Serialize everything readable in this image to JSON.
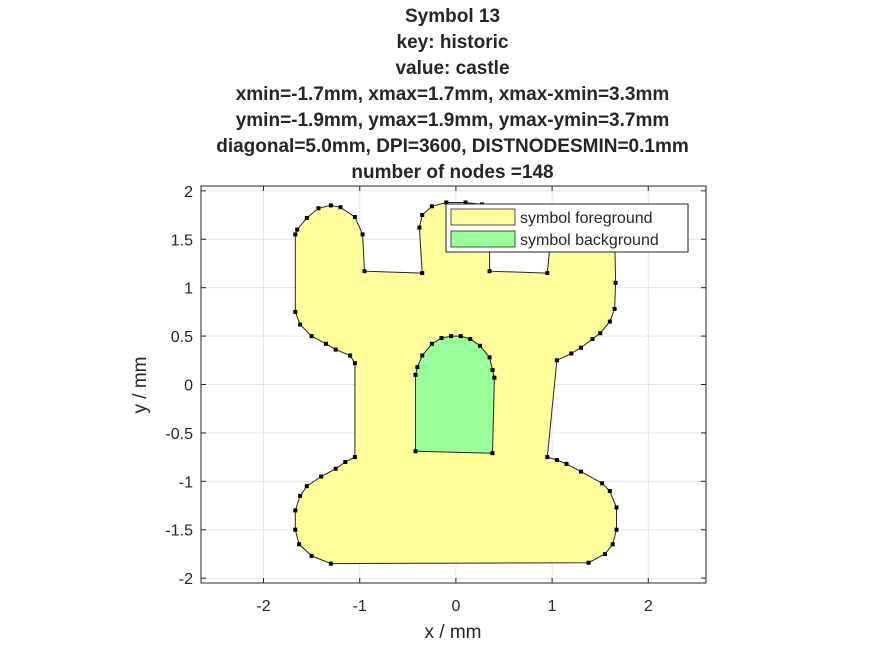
{
  "chart_data": {
    "type": "area",
    "title_lines": [
      "Symbol 13",
      "key: historic",
      "value: castle",
      "xmin=-1.7mm, xmax=1.7mm, xmax-xmin=3.3mm",
      "ymin=-1.9mm, ymax=1.9mm, ymax-ymin=3.7mm",
      "diagonal=5.0mm, DPI=3600, DISTNODESMIN=0.1mm",
      "number of nodes =148"
    ],
    "xlabel": "x / mm",
    "ylabel": "y / mm",
    "xlim": [
      -2.65,
      2.6
    ],
    "ylim": [
      -2.05,
      2.05
    ],
    "xticks": [
      -2,
      -1,
      0,
      1,
      2
    ],
    "xtick_labels": [
      "-2",
      "-1",
      "0",
      "1",
      "2"
    ],
    "yticks": [
      -2,
      -1.5,
      -1,
      -0.5,
      0,
      0.5,
      1,
      1.5,
      2
    ],
    "ytick_labels": [
      "-2",
      "-1.5",
      "-1",
      "-0.5",
      "0",
      "0.5",
      "1",
      "1.5",
      "2"
    ],
    "grid": true,
    "legend_position": "top-right",
    "series": [
      {
        "name": "symbol foreground",
        "color": "#ffff99",
        "points": [
          [
            -1.3,
            -1.85
          ],
          [
            1.38,
            -1.84
          ],
          [
            1.55,
            -1.75
          ],
          [
            1.63,
            -1.65
          ],
          [
            1.67,
            -1.5
          ],
          [
            1.67,
            -1.27
          ],
          [
            1.6,
            -1.1
          ],
          [
            1.52,
            -1.02
          ],
          [
            1.3,
            -0.9
          ],
          [
            1.15,
            -0.82
          ],
          [
            1.05,
            -0.78
          ],
          [
            0.95,
            -0.75
          ],
          [
            1.05,
            0.25
          ],
          [
            1.2,
            0.32
          ],
          [
            1.3,
            0.38
          ],
          [
            1.42,
            0.47
          ],
          [
            1.5,
            0.53
          ],
          [
            1.6,
            0.65
          ],
          [
            1.65,
            0.78
          ],
          [
            1.66,
            1.05
          ],
          [
            1.65,
            1.57
          ],
          [
            1.57,
            1.72
          ],
          [
            1.5,
            1.77
          ],
          [
            1.38,
            1.8
          ],
          [
            1.15,
            1.78
          ],
          [
            1.06,
            1.74
          ],
          [
            1.0,
            1.65
          ],
          [
            0.95,
            1.15
          ],
          [
            0.35,
            1.17
          ],
          [
            0.35,
            1.78
          ],
          [
            0.27,
            1.86
          ],
          [
            0.1,
            1.88
          ],
          [
            -0.1,
            1.88
          ],
          [
            -0.25,
            1.84
          ],
          [
            -0.35,
            1.75
          ],
          [
            -0.38,
            1.62
          ],
          [
            -0.35,
            1.15
          ],
          [
            -0.95,
            1.17
          ],
          [
            -0.97,
            1.55
          ],
          [
            -1.05,
            1.73
          ],
          [
            -1.2,
            1.83
          ],
          [
            -1.3,
            1.85
          ],
          [
            -1.43,
            1.82
          ],
          [
            -1.55,
            1.72
          ],
          [
            -1.65,
            1.6
          ],
          [
            -1.67,
            1.55
          ],
          [
            -1.67,
            0.75
          ],
          [
            -1.62,
            0.62
          ],
          [
            -1.5,
            0.5
          ],
          [
            -1.35,
            0.42
          ],
          [
            -1.25,
            0.36
          ],
          [
            -1.1,
            0.3
          ],
          [
            -1.05,
            0.22
          ],
          [
            -1.05,
            -0.75
          ],
          [
            -1.15,
            -0.8
          ],
          [
            -1.25,
            -0.87
          ],
          [
            -1.4,
            -0.95
          ],
          [
            -1.55,
            -1.05
          ],
          [
            -1.62,
            -1.15
          ],
          [
            -1.67,
            -1.3
          ],
          [
            -1.67,
            -1.5
          ],
          [
            -1.63,
            -1.65
          ],
          [
            -1.5,
            -1.77
          ]
        ]
      },
      {
        "name": "symbol background",
        "color": "#99ff99",
        "points": [
          [
            -0.42,
            -0.69
          ],
          [
            0.38,
            -0.71
          ],
          [
            0.4,
            0.07
          ],
          [
            0.38,
            0.15
          ],
          [
            0.35,
            0.28
          ],
          [
            0.25,
            0.4
          ],
          [
            0.15,
            0.47
          ],
          [
            0.05,
            0.5
          ],
          [
            -0.05,
            0.5
          ],
          [
            -0.15,
            0.48
          ],
          [
            -0.25,
            0.42
          ],
          [
            -0.35,
            0.3
          ],
          [
            -0.4,
            0.18
          ],
          [
            -0.42,
            0.1
          ]
        ]
      }
    ]
  }
}
